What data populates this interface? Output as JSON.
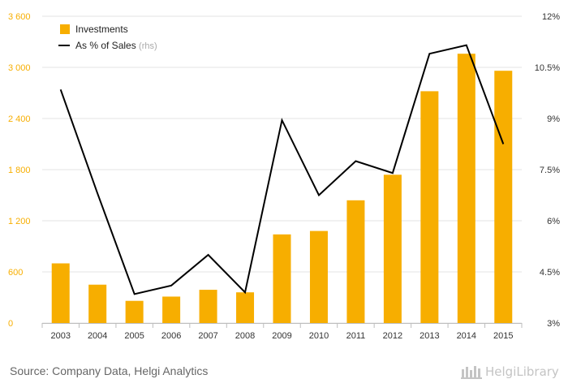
{
  "chart_data": {
    "type": "bar+line",
    "categories": [
      "2003",
      "2004",
      "2005",
      "2006",
      "2007",
      "2008",
      "2009",
      "2010",
      "2011",
      "2012",
      "2013",
      "2014",
      "2015"
    ],
    "series": [
      {
        "name": "Investments",
        "type": "bar",
        "axis": "left",
        "color": "#F7AE00",
        "values": [
          700,
          450,
          260,
          310,
          390,
          360,
          1040,
          1080,
          1440,
          1740,
          2720,
          3160,
          2960
        ]
      },
      {
        "name": "As % of Sales",
        "name_suffix": "(rhs)",
        "type": "line",
        "axis": "right",
        "color": "#000000",
        "values": [
          9.85,
          6.8,
          3.85,
          4.1,
          5.0,
          3.9,
          8.95,
          6.75,
          7.75,
          7.4,
          10.9,
          11.15,
          8.25
        ]
      }
    ],
    "y_left": {
      "min": 0,
      "max": 3600,
      "ticks": [
        "0",
        "600",
        "1 200",
        "1 800",
        "2 400",
        "3 000",
        "3 600"
      ],
      "color": "#F7AE00"
    },
    "y_right": {
      "min": 3,
      "max": 12,
      "ticks": [
        "3%",
        "4.5%",
        "6%",
        "7.5%",
        "9%",
        "10.5%",
        "12%"
      ]
    },
    "grid": "horizontal",
    "legend_position": "top-left"
  },
  "footer": {
    "source": "Source: Company Data, Helgi Analytics",
    "brand": "HelgiLibrary"
  }
}
